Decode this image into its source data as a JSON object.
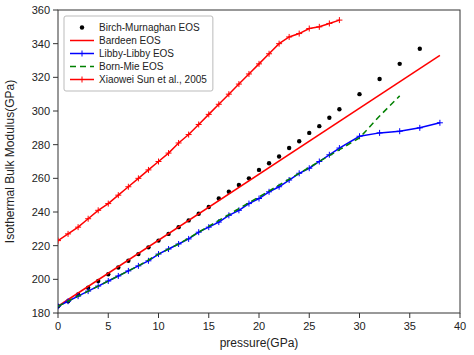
{
  "chart_data": {
    "type": "line",
    "xlabel": "pressure(GPa)",
    "ylabel": "Isothermal Bulk Modulus(GPa)",
    "xlim": [
      0,
      40
    ],
    "ylim": [
      180,
      360
    ],
    "xticks": [
      0,
      5,
      10,
      15,
      20,
      25,
      30,
      35,
      40
    ],
    "yticks": [
      180,
      200,
      220,
      240,
      260,
      280,
      300,
      320,
      340,
      360
    ],
    "grid": false,
    "legend": "upper left",
    "series": [
      {
        "name": "Birch-Murnaghan EOS",
        "color": "black",
        "marker": "dot",
        "line_style": "none",
        "x": [
          0,
          1,
          2,
          3,
          4,
          5,
          6,
          7,
          8,
          9,
          10,
          11,
          12,
          13,
          14,
          15,
          16,
          17,
          18,
          19,
          20,
          21,
          22,
          23,
          24,
          25,
          26,
          27,
          28,
          30,
          32,
          34,
          36
        ],
        "values": [
          184,
          187,
          191,
          195,
          199,
          203,
          207,
          211,
          215,
          219,
          223,
          227,
          231,
          235,
          239,
          243,
          248,
          252,
          256,
          260,
          265,
          269,
          273,
          278,
          282,
          287,
          291,
          296,
          301,
          310,
          319,
          328,
          337
        ]
      },
      {
        "name": "Bardeen EOS",
        "color": "red",
        "marker": "none",
        "line_style": "solid",
        "x": [
          0,
          38
        ],
        "values": [
          184,
          333
        ]
      },
      {
        "name": "Libby-Libby EOS",
        "color": "blue",
        "marker": "plus",
        "line_style": "solid",
        "x": [
          0,
          1,
          2,
          3,
          4,
          5,
          6,
          7,
          8,
          9,
          10,
          11,
          12,
          13,
          14,
          15,
          16,
          17,
          18,
          19,
          20,
          21,
          22,
          23,
          24,
          25,
          26,
          27,
          28,
          30,
          32,
          34,
          36,
          38
        ],
        "values": [
          184,
          187,
          190,
          193,
          196,
          199,
          202,
          205,
          208,
          211,
          215,
          218,
          221,
          224,
          228,
          231,
          234,
          238,
          241,
          245,
          248,
          252,
          255,
          259,
          263,
          266,
          270,
          274,
          278,
          285,
          287,
          288,
          290,
          293
        ]
      },
      {
        "name": "Born-Mie EOS",
        "color": "green",
        "marker": "none",
        "line_style": "dashed",
        "x": [
          0,
          2,
          4,
          6,
          8,
          10,
          12,
          14,
          16,
          18,
          20,
          22,
          24,
          26,
          28,
          30,
          32,
          34
        ],
        "values": [
          184,
          190,
          196,
          202,
          208,
          215,
          221,
          228,
          235,
          242,
          249,
          256,
          263,
          270,
          277,
          284,
          297,
          309
        ]
      },
      {
        "name": "Xiaowei Sun et al., 2005",
        "color": "red",
        "marker": "plus",
        "line_style": "solid",
        "x": [
          0,
          1,
          2,
          3,
          4,
          5,
          6,
          7,
          8,
          9,
          10,
          11,
          12,
          13,
          14,
          15,
          16,
          17,
          18,
          19,
          20,
          21,
          22,
          23,
          24,
          25,
          26,
          27,
          28
        ],
        "values": [
          223,
          227,
          231,
          236,
          241,
          245,
          250,
          255,
          260,
          265,
          270,
          275,
          281,
          286,
          292,
          298,
          304,
          310,
          316,
          322,
          328,
          334,
          340,
          344,
          346,
          349,
          350,
          352,
          354
        ]
      }
    ]
  }
}
